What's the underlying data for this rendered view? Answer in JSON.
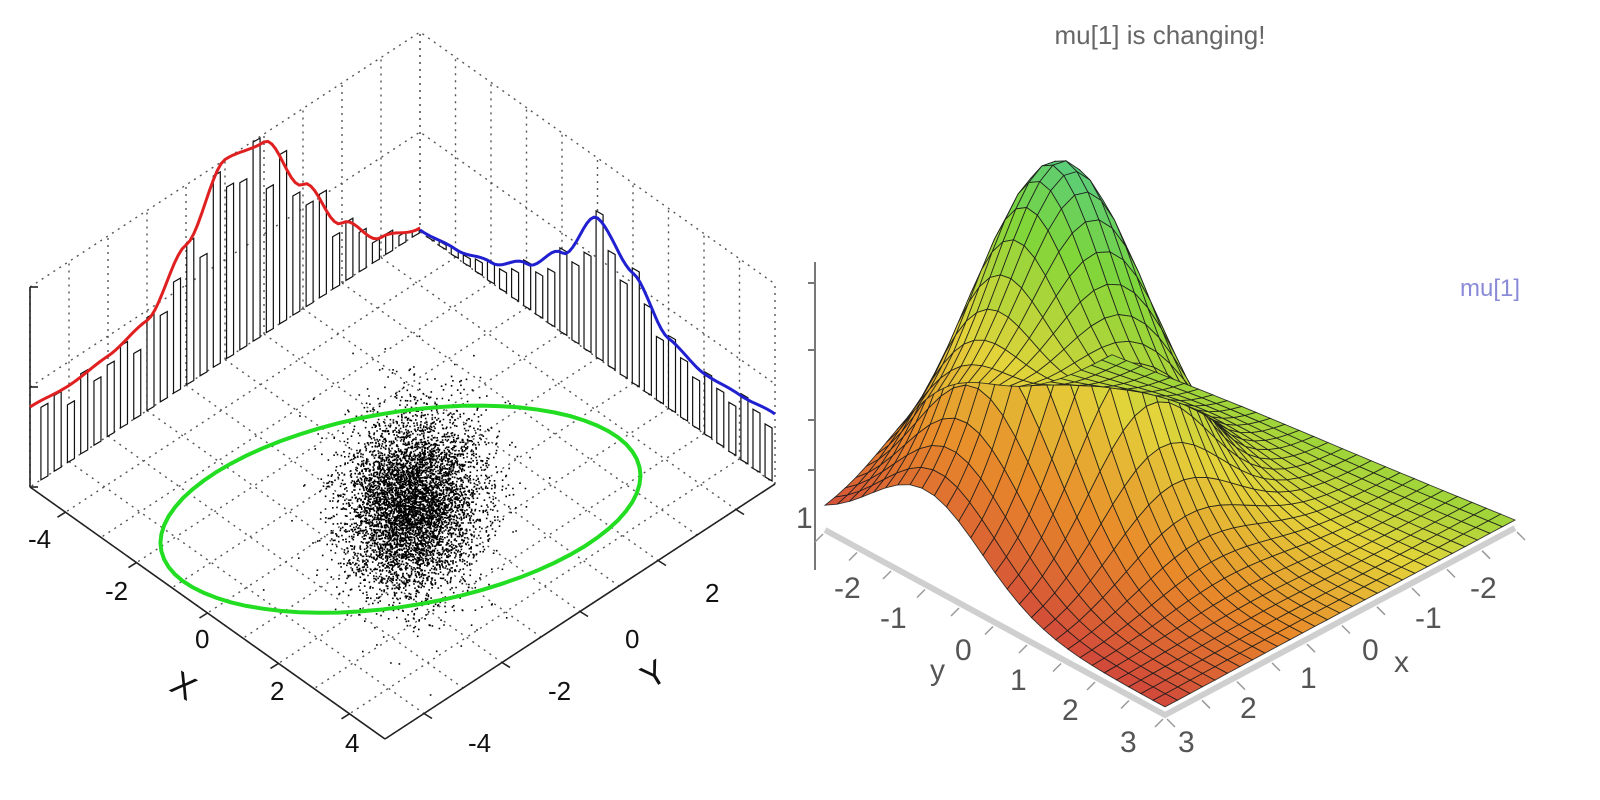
{
  "chart_data": [
    {
      "type": "scatter",
      "title": "",
      "xlabel": "X",
      "ylabel": "Y",
      "x_ticks": [
        "-4",
        "-2",
        "0",
        "2",
        "4"
      ],
      "y_ticks": [
        "-4",
        "-2",
        "0",
        "2"
      ],
      "xlim": [
        -5,
        5
      ],
      "ylim": [
        -5,
        5
      ],
      "grid": true,
      "scatter_sample": {
        "n_points": 6000,
        "mean": [
          0,
          0
        ],
        "std": [
          1.6,
          1.0
        ]
      },
      "confidence_ellipse": {
        "color": "#22dd22",
        "center": [
          0,
          0
        ],
        "semi_axes": [
          3.2,
          1.9
        ]
      },
      "marginal_histograms": [
        {
          "axis": "X",
          "curve_color": "#e02020",
          "x": [
            -5,
            -4,
            -3,
            -2,
            -1,
            0,
            1,
            2,
            3,
            4,
            5
          ],
          "density": [
            0.02,
            0.1,
            0.3,
            0.62,
            0.96,
            1.0,
            0.7,
            0.45,
            0.4,
            0.38,
            0.4
          ]
        },
        {
          "axis": "Y",
          "curve_color": "#2020d0",
          "x": [
            -5,
            -4,
            -3,
            -2,
            -1,
            0,
            1,
            2,
            3,
            4,
            5
          ],
          "density": [
            0.35,
            0.32,
            0.3,
            0.35,
            0.55,
            0.7,
            0.4,
            0.22,
            0.1,
            0.04,
            0.01
          ]
        }
      ]
    },
    {
      "type": "surface",
      "title": "mu[1] is changing!",
      "legend": "mu[1]",
      "xlabel": "x",
      "ylabel": "y",
      "x_ticks": [
        "-2",
        "-1",
        "0",
        "1",
        "2",
        "3"
      ],
      "y_ticks": [
        "-2",
        "-1",
        "0",
        "1",
        "2",
        "3"
      ],
      "z_tick": "1",
      "xlim": [
        -2,
        3
      ],
      "ylim": [
        -2,
        3
      ],
      "function": "bivariate normal density",
      "colormap": [
        "#d24a3a",
        "#e88a2a",
        "#e3d43a",
        "#7ed63a",
        "#3cc4b0",
        "#4a78e0"
      ]
    }
  ]
}
